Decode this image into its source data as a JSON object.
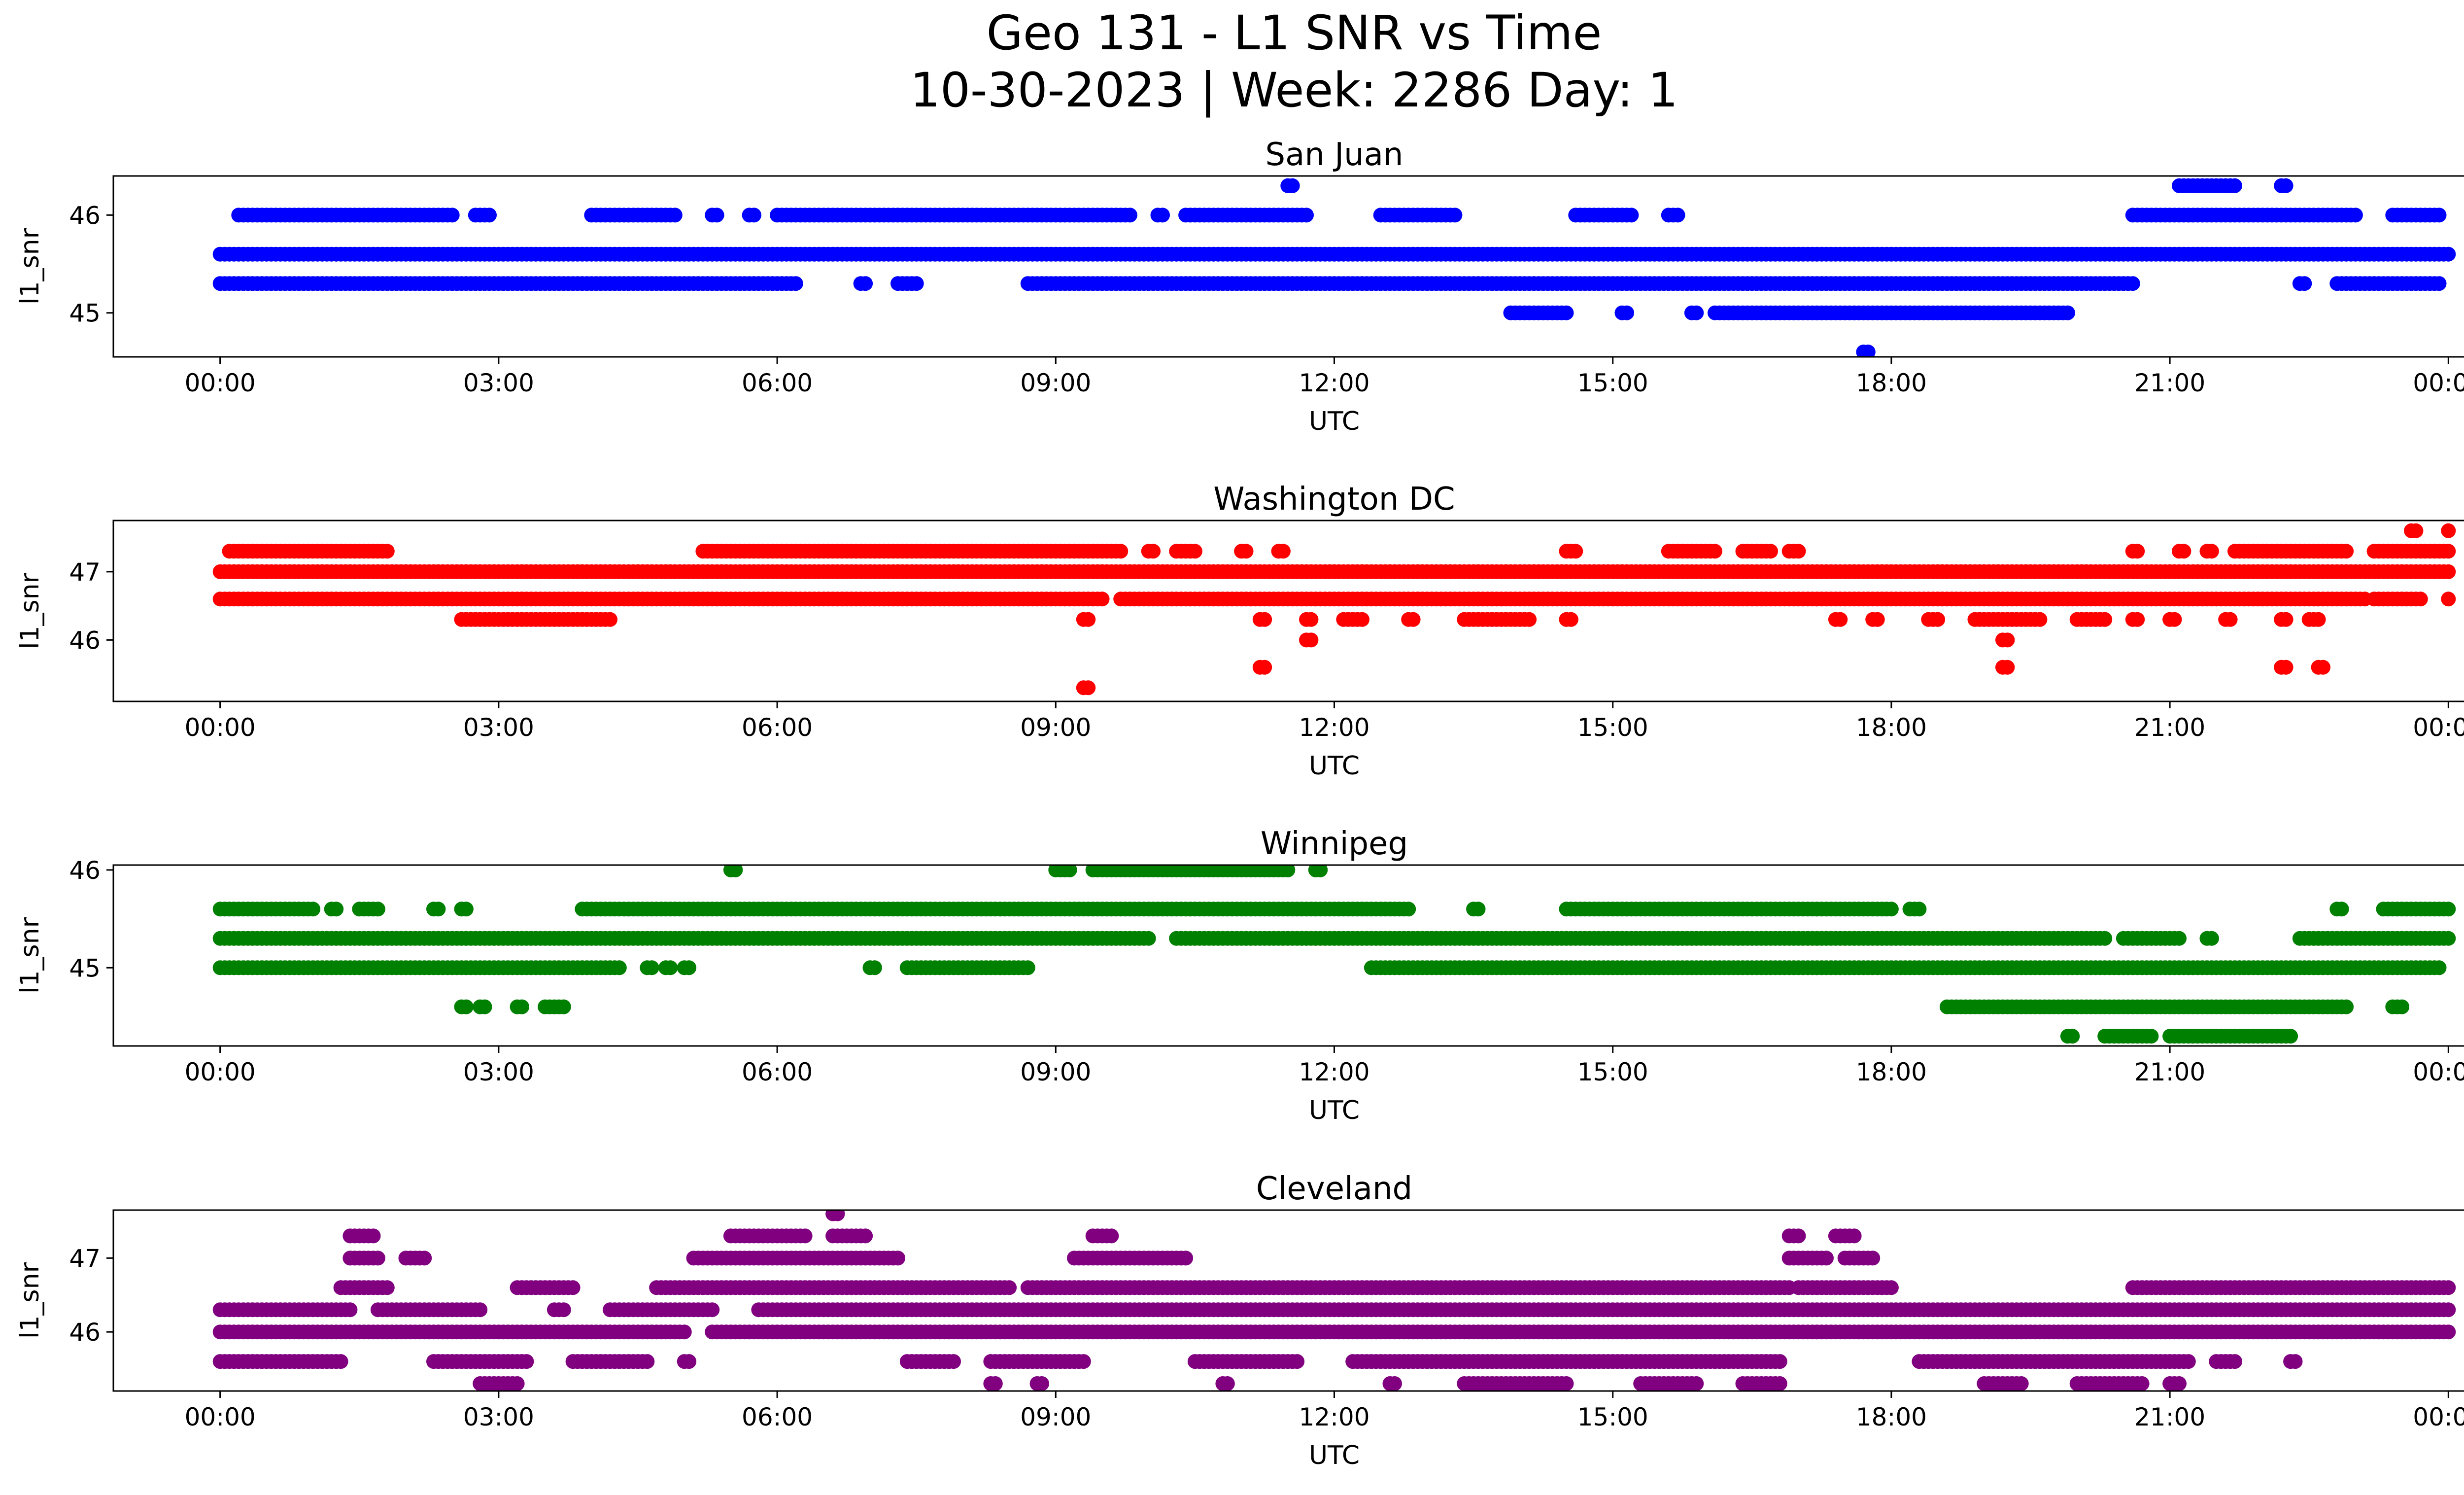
{
  "figure": {
    "title_line1": "Geo 131 - L1 SNR vs Time",
    "title_line2": "10-30-2023 | Week: 2286 Day: 1"
  },
  "chart_data": [
    {
      "type": "scatter",
      "title": "San Juan",
      "xlabel": "UTC",
      "ylabel": "l1_snr",
      "color": "#0000ff",
      "xticks": [
        "00:00",
        "03:00",
        "06:00",
        "09:00",
        "12:00",
        "15:00",
        "18:00",
        "21:00",
        "00:00"
      ],
      "xlim_hours": [
        -1.15,
        25.15
      ],
      "yticks": [
        45,
        46
      ],
      "ylim": [
        44.55,
        46.4
      ],
      "bands": [
        {
          "y": 45.6,
          "segments": [
            [
              0.0,
              24.0
            ]
          ]
        },
        {
          "y": 45.3,
          "segments": [
            [
              0.0,
              6.2
            ],
            [
              6.9,
              6.95
            ],
            [
              7.3,
              7.5
            ],
            [
              8.7,
              20.6
            ],
            [
              22.4,
              22.45
            ],
            [
              22.8,
              23.9
            ]
          ]
        },
        {
          "y": 46.0,
          "segments": [
            [
              0.2,
              2.5
            ],
            [
              2.75,
              2.9
            ],
            [
              4.0,
              4.9
            ],
            [
              5.3,
              5.35
            ],
            [
              5.7,
              5.75
            ],
            [
              6.0,
              9.8
            ],
            [
              10.1,
              10.15
            ],
            [
              10.4,
              11.7
            ],
            [
              12.5,
              13.3
            ],
            [
              14.6,
              15.2
            ],
            [
              15.6,
              15.7
            ],
            [
              20.6,
              23.0
            ],
            [
              23.4,
              23.9
            ]
          ]
        },
        {
          "y": 45.0,
          "segments": [
            [
              13.9,
              14.5
            ],
            [
              15.1,
              15.15
            ],
            [
              15.85,
              15.9
            ],
            [
              16.1,
              19.9
            ]
          ]
        },
        {
          "y": 46.3,
          "segments": [
            [
              11.5,
              11.55
            ],
            [
              21.1,
              21.7
            ],
            [
              22.2,
              22.25
            ]
          ]
        },
        {
          "y": 44.6,
          "segments": [
            [
              17.7,
              17.75
            ]
          ]
        }
      ]
    },
    {
      "type": "scatter",
      "title": "Washington DC",
      "xlabel": "UTC",
      "ylabel": "l1_snr",
      "color": "#ff0000",
      "xticks": [
        "00:00",
        "03:00",
        "06:00",
        "09:00",
        "12:00",
        "15:00",
        "18:00",
        "21:00",
        "00:00"
      ],
      "xlim_hours": [
        -1.15,
        25.15
      ],
      "yticks": [
        46,
        47
      ],
      "ylim": [
        45.1,
        47.75
      ],
      "bands": [
        {
          "y": 47.0,
          "segments": [
            [
              0.0,
              24.0
            ]
          ]
        },
        {
          "y": 46.6,
          "segments": [
            [
              0.0,
              9.5
            ],
            [
              9.7,
              23.1
            ],
            [
              23.2,
              23.7
            ],
            [
              24.0,
              24.0
            ]
          ]
        },
        {
          "y": 47.3,
          "segments": [
            [
              0.1,
              1.8
            ],
            [
              5.2,
              9.7
            ],
            [
              10.0,
              10.05
            ],
            [
              10.3,
              10.5
            ],
            [
              11.0,
              11.05
            ],
            [
              11.4,
              11.45
            ],
            [
              14.5,
              14.6
            ],
            [
              15.6,
              16.1
            ],
            [
              16.4,
              16.7
            ],
            [
              16.9,
              17.0
            ],
            [
              20.6,
              20.65
            ],
            [
              21.1,
              21.15
            ],
            [
              21.4,
              21.45
            ],
            [
              21.7,
              22.9
            ],
            [
              23.2,
              24.0
            ]
          ]
        },
        {
          "y": 46.3,
          "segments": [
            [
              2.6,
              4.2
            ],
            [
              9.3,
              9.35
            ],
            [
              11.2,
              11.25
            ],
            [
              11.7,
              11.75
            ],
            [
              12.1,
              12.3
            ],
            [
              12.8,
              12.85
            ],
            [
              13.4,
              14.1
            ],
            [
              14.5,
              14.55
            ],
            [
              17.4,
              17.45
            ],
            [
              17.8,
              17.85
            ],
            [
              18.4,
              18.5
            ],
            [
              18.9,
              19.6
            ],
            [
              20.0,
              20.3
            ],
            [
              20.6,
              20.65
            ],
            [
              21.0,
              21.05
            ],
            [
              21.6,
              21.65
            ],
            [
              22.2,
              22.25
            ],
            [
              22.5,
              22.6
            ]
          ]
        },
        {
          "y": 46.0,
          "segments": [
            [
              11.7,
              11.75
            ],
            [
              19.2,
              19.25
            ]
          ]
        },
        {
          "y": 45.6,
          "segments": [
            [
              11.2,
              11.25
            ],
            [
              19.2,
              19.25
            ],
            [
              22.2,
              22.25
            ],
            [
              22.6,
              22.65
            ]
          ]
        },
        {
          "y": 45.3,
          "segments": [
            [
              9.3,
              9.35
            ]
          ]
        },
        {
          "y": 47.6,
          "segments": [
            [
              23.6,
              23.65
            ],
            [
              24.0,
              24.0
            ]
          ]
        }
      ]
    },
    {
      "type": "scatter",
      "title": "Winnipeg",
      "xlabel": "UTC",
      "ylabel": "l1_snr",
      "color": "#008000",
      "xticks": [
        "00:00",
        "03:00",
        "06:00",
        "09:00",
        "12:00",
        "15:00",
        "18:00",
        "21:00",
        "00:00"
      ],
      "xlim_hours": [
        -1.15,
        25.15
      ],
      "yticks": [
        45,
        46
      ],
      "ylim": [
        44.2,
        46.05
      ],
      "bands": [
        {
          "y": 45.3,
          "segments": [
            [
              0.0,
              10.0
            ],
            [
              10.3,
              20.3
            ],
            [
              20.5,
              21.1
            ],
            [
              21.4,
              21.45
            ],
            [
              22.4,
              24.0
            ]
          ]
        },
        {
          "y": 45.6,
          "segments": [
            [
              0.0,
              1.0
            ],
            [
              1.2,
              1.25
            ],
            [
              1.5,
              1.7
            ],
            [
              2.3,
              2.35
            ],
            [
              2.6,
              2.65
            ],
            [
              3.9,
              12.8
            ],
            [
              13.5,
              13.55
            ],
            [
              14.5,
              18.0
            ],
            [
              18.2,
              18.3
            ],
            [
              22.8,
              22.85
            ],
            [
              23.3,
              24.0
            ]
          ]
        },
        {
          "y": 45.0,
          "segments": [
            [
              0.0,
              4.3
            ],
            [
              4.6,
              4.65
            ],
            [
              4.8,
              4.85
            ],
            [
              5.0,
              5.05
            ],
            [
              7.0,
              7.05
            ],
            [
              7.4,
              8.7
            ],
            [
              12.4,
              23.9
            ]
          ]
        },
        {
          "y": 46.0,
          "segments": [
            [
              5.5,
              5.55
            ],
            [
              9.0,
              9.15
            ],
            [
              9.4,
              11.5
            ],
            [
              11.8,
              11.85
            ]
          ]
        },
        {
          "y": 44.6,
          "segments": [
            [
              2.6,
              2.65
            ],
            [
              2.8,
              2.85
            ],
            [
              3.2,
              3.25
            ],
            [
              3.5,
              3.7
            ],
            [
              18.6,
              22.9
            ],
            [
              23.4,
              23.5
            ]
          ]
        },
        {
          "y": 44.3,
          "segments": [
            [
              19.9,
              19.95
            ],
            [
              20.3,
              20.8
            ],
            [
              21.0,
              22.3
            ]
          ]
        }
      ]
    },
    {
      "type": "scatter",
      "title": "Cleveland",
      "xlabel": "UTC",
      "ylabel": "l1_snr",
      "color": "#800080",
      "xticks": [
        "00:00",
        "03:00",
        "06:00",
        "09:00",
        "12:00",
        "15:00",
        "18:00",
        "21:00",
        "00:00"
      ],
      "xlim_hours": [
        -1.15,
        25.15
      ],
      "yticks": [
        46,
        47
      ],
      "ylim": [
        45.2,
        47.65
      ],
      "bands": [
        {
          "y": 46.0,
          "segments": [
            [
              0.0,
              5.0
            ],
            [
              5.3,
              24.0
            ]
          ]
        },
        {
          "y": 46.3,
          "segments": [
            [
              0.0,
              1.4
            ],
            [
              1.7,
              2.8
            ],
            [
              3.6,
              3.7
            ],
            [
              4.2,
              5.3
            ],
            [
              5.8,
              24.0
            ]
          ]
        },
        {
          "y": 46.6,
          "segments": [
            [
              1.3,
              1.8
            ],
            [
              3.2,
              3.8
            ],
            [
              4.7,
              8.5
            ],
            [
              8.7,
              16.9
            ],
            [
              17.0,
              18.0
            ],
            [
              20.6,
              24.0
            ]
          ]
        },
        {
          "y": 45.6,
          "segments": [
            [
              0.0,
              1.3
            ],
            [
              2.3,
              3.3
            ],
            [
              3.8,
              4.6
            ],
            [
              5.0,
              5.05
            ],
            [
              7.4,
              7.9
            ],
            [
              8.3,
              9.3
            ],
            [
              10.5,
              11.6
            ],
            [
              12.2,
              16.8
            ],
            [
              18.3,
              21.2
            ],
            [
              21.5,
              21.7
            ],
            [
              22.3,
              22.35
            ]
          ]
        },
        {
          "y": 45.3,
          "segments": [
            [
              2.8,
              3.2
            ],
            [
              8.3,
              8.35
            ],
            [
              8.8,
              8.85
            ],
            [
              10.8,
              10.85
            ],
            [
              12.6,
              12.65
            ],
            [
              13.4,
              14.5
            ],
            [
              15.3,
              15.9
            ],
            [
              16.4,
              16.8
            ],
            [
              19.0,
              19.4
            ],
            [
              20.0,
              20.7
            ],
            [
              21.0,
              21.1
            ]
          ]
        },
        {
          "y": 47.0,
          "segments": [
            [
              1.4,
              1.7
            ],
            [
              2.0,
              2.2
            ],
            [
              5.1,
              7.3
            ],
            [
              9.2,
              10.4
            ],
            [
              16.9,
              17.3
            ],
            [
              17.5,
              17.8
            ]
          ]
        },
        {
          "y": 47.3,
          "segments": [
            [
              1.4,
              1.65
            ],
            [
              5.5,
              6.3
            ],
            [
              6.6,
              6.95
            ],
            [
              9.4,
              9.6
            ],
            [
              16.9,
              17.0
            ],
            [
              17.4,
              17.6
            ]
          ]
        },
        {
          "y": 47.6,
          "segments": [
            [
              6.6,
              6.65
            ]
          ]
        }
      ]
    }
  ]
}
